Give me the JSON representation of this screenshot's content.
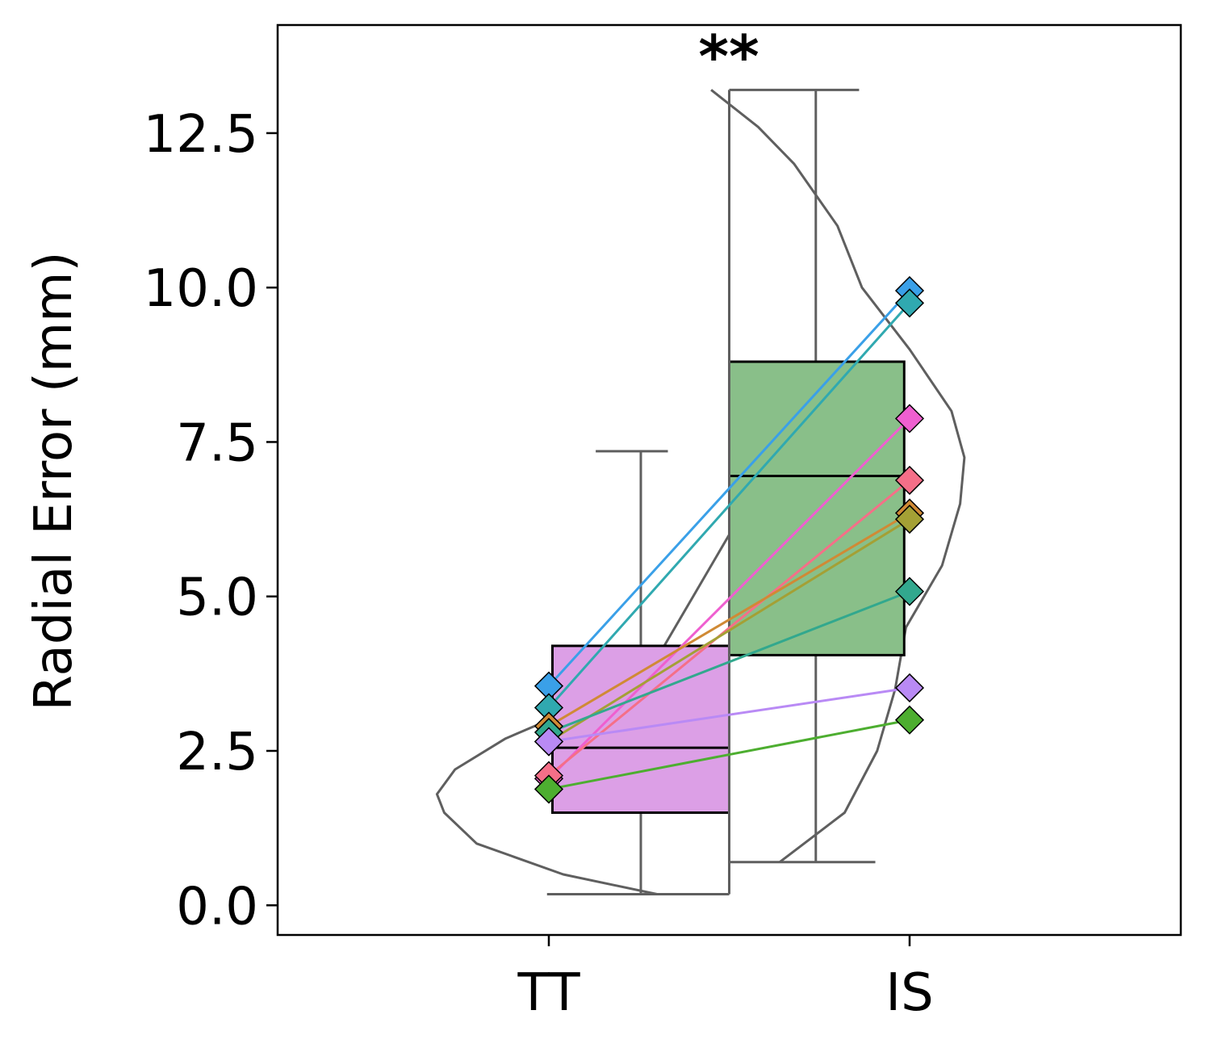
{
  "chart_data": {
    "type": "box-violin-paired",
    "ylabel": "Radial Error (mm)",
    "categories": [
      "TT",
      "IS"
    ],
    "ylim": [
      -0.48,
      14.25
    ],
    "yticks": [
      0.0,
      2.5,
      5.0,
      7.5,
      10.0,
      12.5
    ],
    "ytick_labels": [
      "0.0",
      "2.5",
      "5.0",
      "7.5",
      "10.0",
      "12.5"
    ],
    "significance": "**",
    "grid": false,
    "boxes": [
      {
        "category": "TT",
        "min": 0.18,
        "q1": 1.5,
        "median": 2.55,
        "q3": 4.2,
        "max": 7.35,
        "color": "#dc9fe6"
      },
      {
        "category": "IS",
        "min": 0.7,
        "q1": 4.05,
        "median": 6.95,
        "q3": 8.8,
        "max": 13.2,
        "color": "#89bf89"
      }
    ],
    "violins": [
      {
        "category": "TT",
        "side": "left",
        "profile": [
          [
            0.18,
            1.0
          ],
          [
            0.5,
            2.3
          ],
          [
            1.0,
            3.5
          ],
          [
            1.5,
            3.95
          ],
          [
            1.8,
            4.05
          ],
          [
            2.2,
            3.8
          ],
          [
            2.7,
            3.1
          ],
          [
            3.3,
            1.9
          ],
          [
            3.7,
            1.3
          ],
          [
            4.2,
            0.9
          ],
          [
            5.0,
            0.5
          ],
          [
            6.0,
            0.0
          ],
          [
            7.0,
            -0.55
          ],
          [
            7.35,
            -0.8
          ]
        ]
      },
      {
        "category": "IS",
        "side": "right",
        "profile": [
          [
            0.7,
            0.7
          ],
          [
            1.5,
            1.6
          ],
          [
            2.5,
            2.05
          ],
          [
            3.5,
            2.3
          ],
          [
            4.5,
            2.45
          ],
          [
            5.5,
            2.95
          ],
          [
            6.5,
            3.2
          ],
          [
            7.25,
            3.26
          ],
          [
            8.0,
            3.08
          ],
          [
            9.0,
            2.5
          ],
          [
            10.0,
            1.84
          ],
          [
            11.0,
            1.5
          ],
          [
            12.0,
            0.9
          ],
          [
            12.6,
            0.4
          ],
          [
            13.2,
            -0.25
          ]
        ]
      }
    ],
    "pairs": [
      {
        "tt": 3.55,
        "is": 9.95,
        "color": "#3aa0e8"
      },
      {
        "tt": 3.2,
        "is": 9.75,
        "color": "#30a9b0"
      },
      {
        "tt": 2.05,
        "is": 7.88,
        "color": "#ef5fd0"
      },
      {
        "tt": 2.1,
        "is": 6.88,
        "color": "#f56f88"
      },
      {
        "tt": 2.9,
        "is": 6.35,
        "color": "#d08a35"
      },
      {
        "tt": 2.65,
        "is": 6.25,
        "color": "#a4a035"
      },
      {
        "tt": 2.8,
        "is": 5.08,
        "color": "#32a88e"
      },
      {
        "tt": 2.65,
        "is": 3.52,
        "color": "#b98af5"
      },
      {
        "tt": 1.88,
        "is": 3.0,
        "color": "#4dae30"
      }
    ]
  }
}
